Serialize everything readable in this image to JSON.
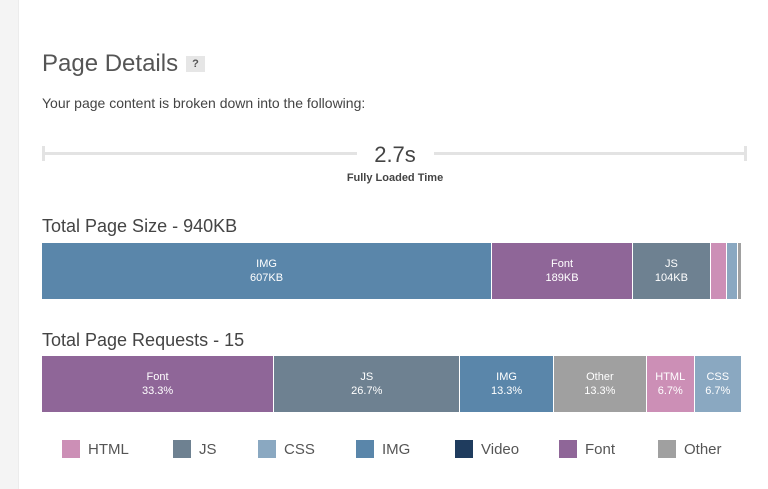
{
  "title": "Page Details",
  "help": "?",
  "subtitle": "Your page content is broken down into the following:",
  "load_time": "2.7s",
  "load_time_label": "Fully Loaded Time",
  "colors": {
    "HTML": "#cc8fb6",
    "JS": "#6e8191",
    "CSS": "#8aa8c1",
    "IMG": "#5a86aa",
    "Video": "#1f3c5e",
    "Font": "#8f6698",
    "Other": "#a0a0a0"
  },
  "size": {
    "title": "Total Page Size - 940KB",
    "segments": [
      {
        "type": "IMG",
        "label": "IMG",
        "value": "607KB",
        "kb": 607
      },
      {
        "type": "Font",
        "label": "Font",
        "value": "189KB",
        "kb": 189
      },
      {
        "type": "JS",
        "label": "JS",
        "value": "104KB",
        "kb": 104
      },
      {
        "type": "HTML",
        "label": "",
        "value": "",
        "kb": 21
      },
      {
        "type": "CSS",
        "label": "",
        "value": "",
        "kb": 13
      },
      {
        "type": "Other",
        "label": "",
        "value": "",
        "kb": 4
      }
    ]
  },
  "requests": {
    "title": "Total Page Requests - 15",
    "segments": [
      {
        "type": "Font",
        "label": "Font",
        "value": "33.3%",
        "pct": 33.3
      },
      {
        "type": "JS",
        "label": "JS",
        "value": "26.7%",
        "pct": 26.7
      },
      {
        "type": "IMG",
        "label": "IMG",
        "value": "13.3%",
        "pct": 13.3
      },
      {
        "type": "Other",
        "label": "Other",
        "value": "13.3%",
        "pct": 13.3
      },
      {
        "type": "HTML",
        "label": "HTML",
        "value": "6.7%",
        "pct": 6.7
      },
      {
        "type": "CSS",
        "label": "CSS",
        "value": "6.7%",
        "pct": 6.7
      }
    ]
  },
  "legend": [
    "HTML",
    "JS",
    "CSS",
    "IMG",
    "Video",
    "Font",
    "Other"
  ]
}
